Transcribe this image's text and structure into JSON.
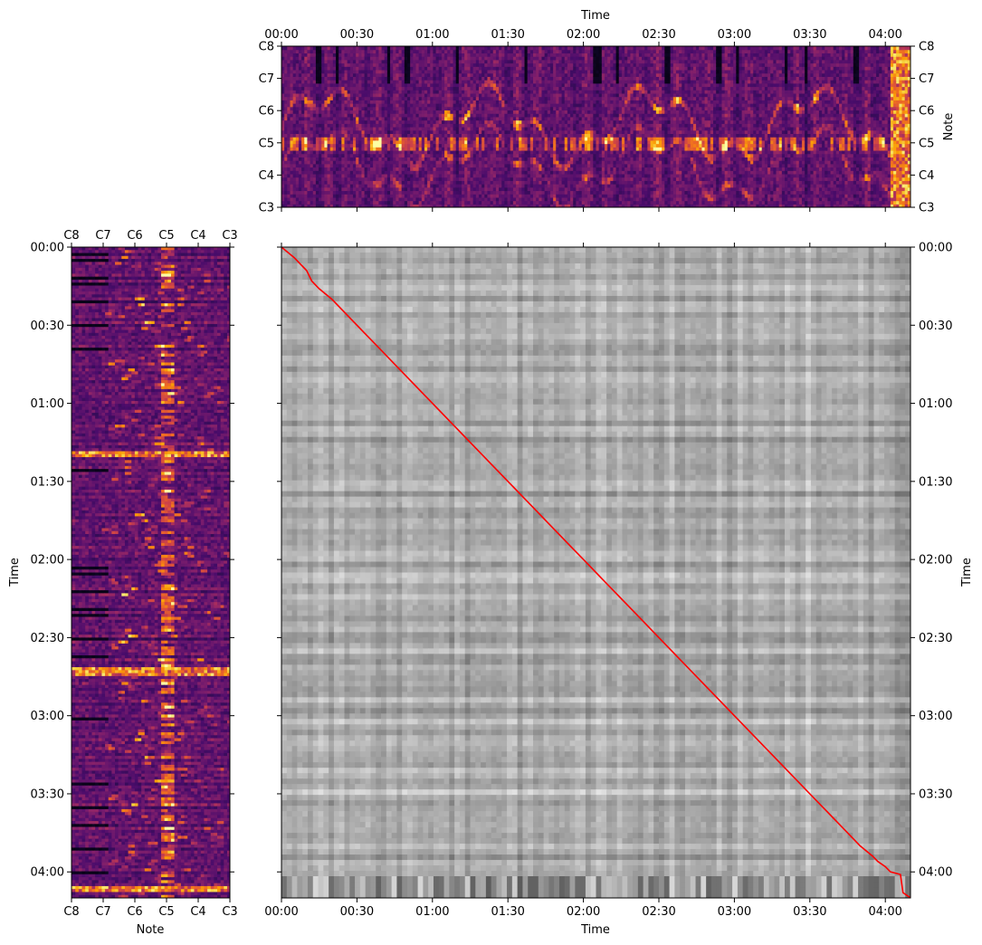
{
  "colors": {
    "inferno": [
      "#000004",
      "#1b0c41",
      "#4a0c6b",
      "#781c6d",
      "#a52c60",
      "#cf4446",
      "#ed6925",
      "#fb9b06",
      "#f7d13d",
      "#fcffa4"
    ],
    "path": "#ff0000",
    "axis": "#000000"
  },
  "chart_data": [
    {
      "id": "top_spectrogram",
      "type": "heatmap",
      "colormap": "inferno",
      "xlabel": "Time",
      "ylabel": "Note",
      "x_ticks": [
        "00:00",
        "00:30",
        "01:00",
        "01:30",
        "02:00",
        "02:30",
        "03:00",
        "03:30",
        "04:00"
      ],
      "x_tick_seconds": [
        0,
        30,
        60,
        90,
        120,
        150,
        180,
        210,
        240
      ],
      "xlim_seconds": [
        0,
        250
      ],
      "y_ticks": [
        "C3",
        "C4",
        "C5",
        "C6",
        "C7",
        "C8"
      ],
      "y_tick_midi": [
        48,
        60,
        72,
        84,
        96,
        108
      ],
      "ylim_midi": [
        48,
        108
      ]
    },
    {
      "id": "left_spectrogram",
      "type": "heatmap",
      "colormap": "inferno",
      "xlabel": "Note",
      "ylabel": "Time",
      "x_ticks": [
        "C8",
        "C7",
        "C6",
        "C5",
        "C4",
        "C3"
      ],
      "x_tick_midi": [
        108,
        96,
        84,
        72,
        60,
        48
      ],
      "xlim_midi": [
        108,
        48
      ],
      "y_ticks": [
        "00:00",
        "00:30",
        "01:00",
        "01:30",
        "02:00",
        "02:30",
        "03:00",
        "03:30",
        "04:00"
      ],
      "y_tick_seconds": [
        0,
        30,
        60,
        90,
        120,
        150,
        180,
        210,
        240
      ],
      "ylim_seconds": [
        0,
        250
      ]
    },
    {
      "id": "cost_matrix",
      "type": "heatmap",
      "colormap": "gray",
      "xlabel": "Time",
      "ylabel": "Time",
      "x_ticks": [
        "00:00",
        "00:30",
        "01:00",
        "01:30",
        "02:00",
        "02:30",
        "03:00",
        "03:30",
        "04:00"
      ],
      "y_ticks": [
        "00:00",
        "00:30",
        "01:00",
        "01:30",
        "02:00",
        "02:30",
        "03:00",
        "03:30",
        "04:00"
      ],
      "tick_seconds": [
        0,
        30,
        60,
        90,
        120,
        150,
        180,
        210,
        240
      ],
      "xlim_seconds": [
        0,
        250
      ],
      "ylim_seconds": [
        0,
        250
      ],
      "alignment_path": {
        "x": [
          0,
          5,
          10,
          12,
          15,
          20,
          30,
          40,
          50,
          60,
          70,
          80,
          90,
          100,
          110,
          120,
          130,
          140,
          150,
          160,
          170,
          180,
          190,
          200,
          210,
          220,
          230,
          235,
          237,
          240,
          242,
          246,
          247,
          250
        ],
        "y": [
          0,
          4,
          9,
          13,
          16,
          20,
          30,
          40,
          50,
          60,
          70,
          80,
          90,
          100,
          110,
          120,
          130,
          140,
          150,
          160,
          170,
          180,
          190,
          200,
          210,
          220,
          230,
          234,
          236,
          238,
          240,
          241,
          248,
          250
        ]
      }
    }
  ]
}
